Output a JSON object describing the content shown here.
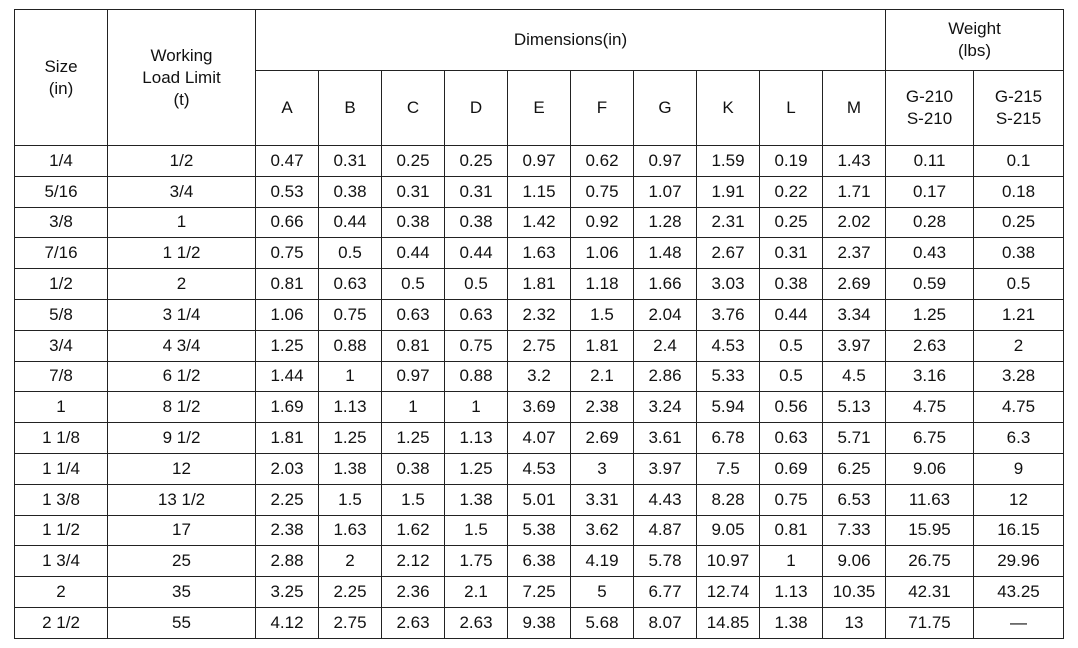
{
  "table": {
    "headers": {
      "size": "Size\n(in)",
      "wll": "Working\nLoad Limit\n(t)",
      "dimensions": "Dimensions(in)",
      "weight": "Weight\n(lbs)",
      "dim_columns": [
        "A",
        "B",
        "C",
        "D",
        "E",
        "F",
        "G",
        "K",
        "L",
        "M"
      ],
      "weight_columns": [
        "G-210\nS-210",
        "G-215\nS-215"
      ]
    },
    "rows": [
      [
        "1/4",
        "1/2",
        "0.47",
        "0.31",
        "0.25",
        "0.25",
        "0.97",
        "0.62",
        "0.97",
        "1.59",
        "0.19",
        "1.43",
        "0.11",
        "0.1"
      ],
      [
        "5/16",
        "3/4",
        "0.53",
        "0.38",
        "0.31",
        "0.31",
        "1.15",
        "0.75",
        "1.07",
        "1.91",
        "0.22",
        "1.71",
        "0.17",
        "0.18"
      ],
      [
        "3/8",
        "1",
        "0.66",
        "0.44",
        "0.38",
        "0.38",
        "1.42",
        "0.92",
        "1.28",
        "2.31",
        "0.25",
        "2.02",
        "0.28",
        "0.25"
      ],
      [
        "7/16",
        "1 1/2",
        "0.75",
        "0.5",
        "0.44",
        "0.44",
        "1.63",
        "1.06",
        "1.48",
        "2.67",
        "0.31",
        "2.37",
        "0.43",
        "0.38"
      ],
      [
        "1/2",
        "2",
        "0.81",
        "0.63",
        "0.5",
        "0.5",
        "1.81",
        "1.18",
        "1.66",
        "3.03",
        "0.38",
        "2.69",
        "0.59",
        "0.5"
      ],
      [
        "5/8",
        "3 1/4",
        "1.06",
        "0.75",
        "0.63",
        "0.63",
        "2.32",
        "1.5",
        "2.04",
        "3.76",
        "0.44",
        "3.34",
        "1.25",
        "1.21"
      ],
      [
        "3/4",
        "4 3/4",
        "1.25",
        "0.88",
        "0.81",
        "0.75",
        "2.75",
        "1.81",
        "2.4",
        "4.53",
        "0.5",
        "3.97",
        "2.63",
        "2"
      ],
      [
        "7/8",
        "6 1/2",
        "1.44",
        "1",
        "0.97",
        "0.88",
        "3.2",
        "2.1",
        "2.86",
        "5.33",
        "0.5",
        "4.5",
        "3.16",
        "3.28"
      ],
      [
        "1",
        "8 1/2",
        "1.69",
        "1.13",
        "1",
        "1",
        "3.69",
        "2.38",
        "3.24",
        "5.94",
        "0.56",
        "5.13",
        "4.75",
        "4.75"
      ],
      [
        "1 1/8",
        "9 1/2",
        "1.81",
        "1.25",
        "1.25",
        "1.13",
        "4.07",
        "2.69",
        "3.61",
        "6.78",
        "0.63",
        "5.71",
        "6.75",
        "6.3"
      ],
      [
        "1 1/4",
        "12",
        "2.03",
        "1.38",
        "0.38",
        "1.25",
        "4.53",
        "3",
        "3.97",
        "7.5",
        "0.69",
        "6.25",
        "9.06",
        "9"
      ],
      [
        "1 3/8",
        "13 1/2",
        "2.25",
        "1.5",
        "1.5",
        "1.38",
        "5.01",
        "3.31",
        "4.43",
        "8.28",
        "0.75",
        "6.53",
        "11.63",
        "12"
      ],
      [
        "1 1/2",
        "17",
        "2.38",
        "1.63",
        "1.62",
        "1.5",
        "5.38",
        "3.62",
        "4.87",
        "9.05",
        "0.81",
        "7.33",
        "15.95",
        "16.15"
      ],
      [
        "1 3/4",
        "25",
        "2.88",
        "2",
        "2.12",
        "1.75",
        "6.38",
        "4.19",
        "5.78",
        "10.97",
        "1",
        "9.06",
        "26.75",
        "29.96"
      ],
      [
        "2",
        "35",
        "3.25",
        "2.25",
        "2.36",
        "2.1",
        "7.25",
        "5",
        "6.77",
        "12.74",
        "1.13",
        "10.35",
        "42.31",
        "43.25"
      ],
      [
        "2 1/2",
        "55",
        "4.12",
        "2.75",
        "2.63",
        "2.63",
        "9.38",
        "5.68",
        "8.07",
        "14.85",
        "1.38",
        "13",
        "71.75",
        "—"
      ]
    ]
  }
}
